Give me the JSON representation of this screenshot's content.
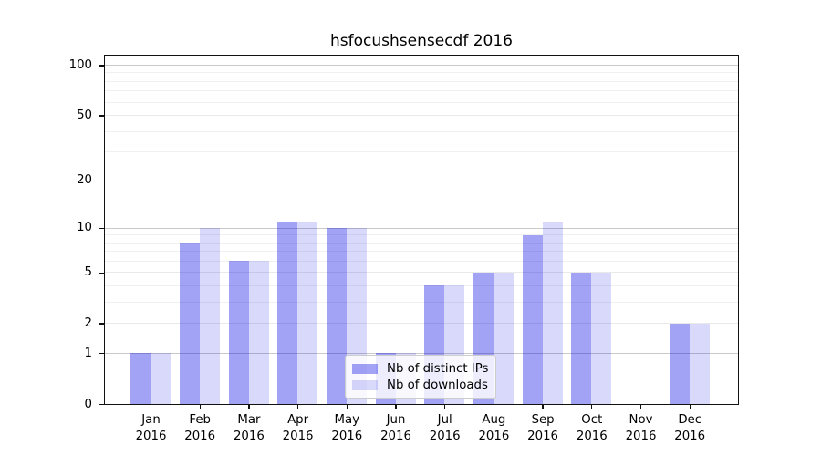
{
  "chart_data": {
    "type": "bar",
    "title": "hsfocushsensecdf 2016",
    "categories": [
      "Jan",
      "Feb",
      "Mar",
      "Apr",
      "May",
      "Jun",
      "Jul",
      "Aug",
      "Sep",
      "Oct",
      "Nov",
      "Dec"
    ],
    "tick_year_line": "2016",
    "series": [
      {
        "name": "Nb of distinct IPs",
        "color": "rgba(0,0,230,0.36)",
        "values": [
          1,
          8,
          6,
          11,
          10,
          1,
          4,
          5,
          9,
          5,
          0,
          2
        ]
      },
      {
        "name": "Nb of downloads",
        "color": "rgba(0,0,230,0.15)",
        "values": [
          1,
          10,
          6,
          11,
          10,
          1,
          4,
          5,
          11,
          5,
          0,
          2
        ]
      }
    ],
    "yscale": "log1p",
    "ylim": [
      0,
      116
    ],
    "yticks_major": [
      0,
      1,
      2,
      5,
      10,
      20,
      50,
      100
    ],
    "yticks_minor": [
      3,
      4,
      6,
      7,
      8,
      9,
      30,
      40,
      60,
      70,
      80,
      90
    ],
    "grid": "horizontal",
    "legend_position": "lower center",
    "colors": {
      "grid_decade": "#c9c9c9",
      "grid_mid": "#e9e9e9",
      "grid_minor": "#f0f0f0",
      "spine": "#111111",
      "background": "#ffffff"
    }
  }
}
